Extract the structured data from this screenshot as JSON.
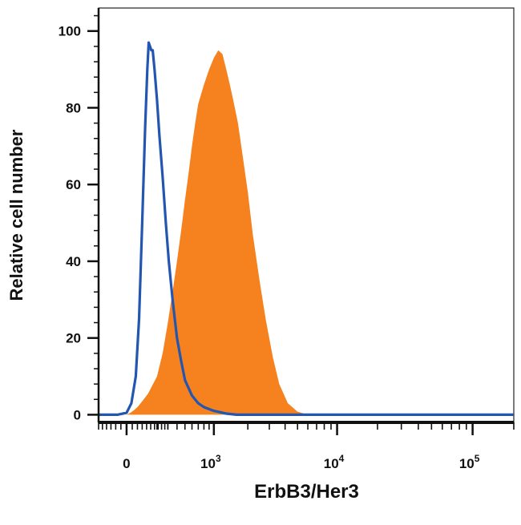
{
  "chart_data": {
    "type": "area",
    "title": "",
    "xlabel": "ErbB3/Her3",
    "ylabel": "Relative cell number",
    "x_scale": "biexponential",
    "x_ticks": [
      {
        "value": 0,
        "label": "0"
      },
      {
        "value": 1000,
        "base": "10",
        "exp": "3"
      },
      {
        "value": 10000,
        "base": "10",
        "exp": "4"
      },
      {
        "value": 100000,
        "base": "10",
        "exp": "5"
      }
    ],
    "y_ticks": [
      0,
      20,
      40,
      60,
      80,
      100
    ],
    "xlim": [
      -180,
      200000
    ],
    "ylim": [
      -2,
      106
    ],
    "legend": "none",
    "grid": false,
    "series": [
      {
        "style": "filled",
        "color": "#F5821F",
        "points": [
          [
            -50,
            0
          ],
          [
            0,
            0
          ],
          [
            20,
            0.5
          ],
          [
            40,
            1.2
          ],
          [
            60,
            2
          ],
          [
            80,
            3
          ],
          [
            100,
            4
          ],
          [
            130,
            5.5
          ],
          [
            160,
            7.5
          ],
          [
            200,
            10
          ],
          [
            250,
            16
          ],
          [
            300,
            24
          ],
          [
            350,
            32
          ],
          [
            400,
            40
          ],
          [
            450,
            48
          ],
          [
            500,
            56
          ],
          [
            550,
            63
          ],
          [
            600,
            70
          ],
          [
            650,
            76
          ],
          [
            700,
            81
          ],
          [
            800,
            86
          ],
          [
            900,
            90
          ],
          [
            1000,
            93
          ],
          [
            1100,
            95
          ],
          [
            1200,
            94
          ],
          [
            1300,
            90
          ],
          [
            1400,
            86
          ],
          [
            1500,
            82
          ],
          [
            1650,
            76
          ],
          [
            1800,
            68
          ],
          [
            2000,
            58
          ],
          [
            2200,
            47
          ],
          [
            2500,
            35
          ],
          [
            2800,
            25
          ],
          [
            3200,
            15
          ],
          [
            3600,
            8
          ],
          [
            4200,
            3
          ],
          [
            5000,
            0.8
          ],
          [
            6000,
            0
          ],
          [
            200000,
            0
          ]
        ]
      },
      {
        "style": "line",
        "color": "#2356B0",
        "points": [
          [
            -180,
            0
          ],
          [
            -50,
            0
          ],
          [
            0,
            0.5
          ],
          [
            25,
            3
          ],
          [
            50,
            10
          ],
          [
            70,
            25
          ],
          [
            90,
            50
          ],
          [
            110,
            75
          ],
          [
            125,
            90
          ],
          [
            135,
            97
          ],
          [
            145,
            96
          ],
          [
            155,
            95
          ],
          [
            165,
            95
          ],
          [
            180,
            90
          ],
          [
            200,
            82
          ],
          [
            220,
            73
          ],
          [
            250,
            62
          ],
          [
            280,
            50
          ],
          [
            310,
            40
          ],
          [
            350,
            30
          ],
          [
            400,
            20
          ],
          [
            450,
            14
          ],
          [
            500,
            9
          ],
          [
            600,
            5
          ],
          [
            700,
            3
          ],
          [
            800,
            2
          ],
          [
            1000,
            1
          ],
          [
            1300,
            0.3
          ],
          [
            1600,
            0
          ],
          [
            200000,
            0
          ]
        ]
      }
    ]
  }
}
